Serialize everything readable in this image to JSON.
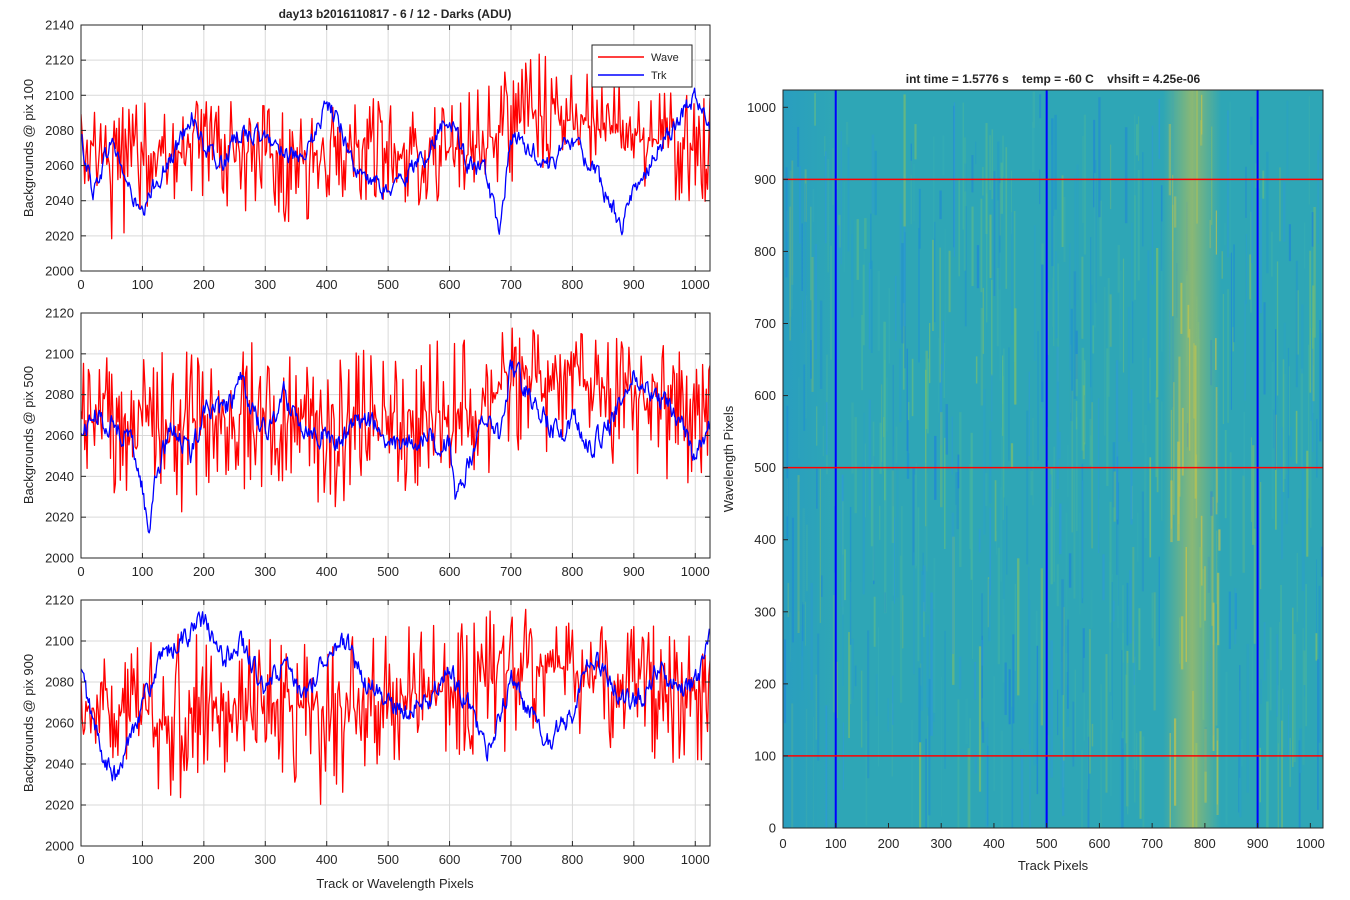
{
  "figure": {
    "title": "day13 b2016110817 - 6 / 12 - Darks (ADU)"
  },
  "chart_data": [
    {
      "type": "line",
      "ylabel": "Backgrounds @ pix 100",
      "xlabel": "",
      "xlim": [
        0,
        1024
      ],
      "ylim": [
        2000,
        2140
      ],
      "xticks": [
        0,
        100,
        200,
        300,
        400,
        500,
        600,
        700,
        800,
        900,
        1000
      ],
      "yticks": [
        2000,
        2020,
        2040,
        2060,
        2080,
        2100,
        2120,
        2140
      ],
      "grid": true,
      "legend": {
        "placement": "top-right",
        "entries": [
          "Wave",
          "Trk"
        ]
      },
      "series": [
        {
          "name": "Wave",
          "color": "#ff0000",
          "x": [
            0,
            50,
            100,
            150,
            200,
            250,
            300,
            350,
            400,
            450,
            500,
            550,
            600,
            650,
            700,
            750,
            800,
            850,
            900,
            950,
            1000,
            1024
          ],
          "y": [
            2065,
            2070,
            2068,
            2066,
            2072,
            2070,
            2068,
            2065,
            2068,
            2070,
            2068,
            2066,
            2070,
            2072,
            2082,
            2088,
            2085,
            2080,
            2076,
            2074,
            2072,
            2074
          ],
          "min": [
            2045,
            2017,
            2016,
            2040,
            2040,
            2030,
            2040,
            2020,
            2040,
            2040,
            2040,
            2030,
            2040,
            2050,
            2050,
            2050,
            2050,
            2050,
            2050,
            2040,
            2038,
            2040
          ],
          "max": [
            2090,
            2095,
            2098,
            2095,
            2100,
            2097,
            2095,
            2100,
            2095,
            2098,
            2100,
            2095,
            2100,
            2105,
            2118,
            2126,
            2118,
            2115,
            2110,
            2108,
            2100,
            2100
          ]
        },
        {
          "name": "Trk",
          "color": "#0000ff",
          "x": [
            0,
            20,
            50,
            80,
            100,
            120,
            150,
            180,
            200,
            230,
            260,
            300,
            330,
            360,
            400,
            420,
            450,
            500,
            530,
            560,
            600,
            630,
            660,
            680,
            700,
            730,
            760,
            800,
            830,
            860,
            880,
            900,
            930,
            960,
            1000,
            1024
          ],
          "y": [
            2075,
            2045,
            2075,
            2045,
            2030,
            2050,
            2065,
            2090,
            2070,
            2060,
            2080,
            2075,
            2070,
            2060,
            2095,
            2085,
            2055,
            2045,
            2055,
            2065,
            2090,
            2060,
            2055,
            2020,
            2075,
            2070,
            2060,
            2075,
            2060,
            2040,
            2025,
            2045,
            2065,
            2080,
            2100,
            2080
          ]
        }
      ]
    },
    {
      "type": "line",
      "ylabel": "Backgrounds @ pix 500",
      "xlabel": "",
      "xlim": [
        0,
        1024
      ],
      "ylim": [
        2000,
        2120
      ],
      "xticks": [
        0,
        100,
        200,
        300,
        400,
        500,
        600,
        700,
        800,
        900,
        1000
      ],
      "yticks": [
        2000,
        2020,
        2040,
        2060,
        2080,
        2100,
        2120
      ],
      "grid": true,
      "series": [
        {
          "name": "Wave",
          "color": "#ff0000",
          "x": [
            0,
            50,
            100,
            150,
            200,
            250,
            300,
            350,
            400,
            450,
            500,
            550,
            600,
            650,
            700,
            750,
            800,
            850,
            900,
            950,
            1000,
            1024
          ],
          "y": [
            2068,
            2070,
            2066,
            2064,
            2070,
            2070,
            2072,
            2068,
            2068,
            2068,
            2070,
            2072,
            2070,
            2072,
            2085,
            2090,
            2088,
            2084,
            2080,
            2076,
            2074,
            2074
          ],
          "min": [
            2040,
            2030,
            2030,
            2007,
            2035,
            2030,
            2035,
            2030,
            2020,
            2030,
            2030,
            2030,
            2035,
            2040,
            2045,
            2050,
            2050,
            2045,
            2040,
            2035,
            2030,
            2040
          ],
          "max": [
            2095,
            2100,
            2098,
            2104,
            2100,
            2102,
            2110,
            2100,
            2098,
            2105,
            2110,
            2108,
            2105,
            2116,
            2115,
            2112,
            2112,
            2110,
            2108,
            2105,
            2100,
            2100
          ]
        },
        {
          "name": "Trk",
          "color": "#0000ff",
          "x": [
            0,
            20,
            50,
            80,
            100,
            110,
            120,
            150,
            180,
            200,
            230,
            260,
            300,
            330,
            360,
            400,
            420,
            450,
            480,
            500,
            530,
            560,
            600,
            610,
            630,
            660,
            680,
            700,
            720,
            750,
            780,
            800,
            830,
            860,
            900,
            950,
            980,
            1000,
            1024
          ],
          "y": [
            2060,
            2070,
            2065,
            2060,
            2035,
            2010,
            2040,
            2065,
            2050,
            2075,
            2070,
            2085,
            2060,
            2080,
            2065,
            2060,
            2055,
            2070,
            2065,
            2055,
            2055,
            2060,
            2055,
            2025,
            2045,
            2070,
            2060,
            2095,
            2085,
            2070,
            2060,
            2070,
            2055,
            2065,
            2090,
            2075,
            2065,
            2050,
            2065
          ]
        }
      ]
    },
    {
      "type": "line",
      "ylabel": "Backgrounds @ pix 900",
      "xlabel": "Track or Wavelength Pixels",
      "xlim": [
        0,
        1024
      ],
      "ylim": [
        2000,
        2120
      ],
      "xticks": [
        0,
        100,
        200,
        300,
        400,
        500,
        600,
        700,
        800,
        900,
        1000
      ],
      "yticks": [
        2000,
        2020,
        2040,
        2060,
        2080,
        2100,
        2120
      ],
      "grid": true,
      "series": [
        {
          "name": "Wave",
          "color": "#ff0000",
          "x": [
            0,
            50,
            100,
            150,
            200,
            250,
            300,
            350,
            400,
            450,
            500,
            550,
            600,
            650,
            700,
            750,
            800,
            850,
            900,
            950,
            1000,
            1024
          ],
          "y": [
            2068,
            2066,
            2064,
            2066,
            2068,
            2066,
            2070,
            2068,
            2066,
            2068,
            2072,
            2074,
            2076,
            2080,
            2086,
            2088,
            2086,
            2082,
            2080,
            2078,
            2076,
            2074
          ],
          "min": [
            2040,
            2040,
            2035,
            2018,
            2040,
            2022,
            2040,
            2030,
            2016,
            2035,
            2040,
            2040,
            2040,
            2045,
            2045,
            2050,
            2050,
            2045,
            2045,
            2040,
            2040,
            2040
          ],
          "max": [
            2095,
            2095,
            2100,
            2105,
            2105,
            2100,
            2105,
            2105,
            2100,
            2105,
            2108,
            2108,
            2110,
            2115,
            2115,
            2116,
            2115,
            2112,
            2110,
            2108,
            2105,
            2100
          ]
        },
        {
          "name": "Trk",
          "color": "#0000ff",
          "x": [
            0,
            20,
            40,
            60,
            80,
            100,
            130,
            160,
            200,
            230,
            260,
            300,
            330,
            360,
            400,
            430,
            460,
            500,
            530,
            560,
            600,
            630,
            660,
            700,
            720,
            760,
            800,
            830,
            860,
            900,
            940,
            980,
            1000,
            1024
          ],
          "y": [
            2085,
            2060,
            2040,
            2032,
            2055,
            2070,
            2090,
            2100,
            2110,
            2090,
            2100,
            2075,
            2090,
            2070,
            2095,
            2100,
            2080,
            2070,
            2065,
            2070,
            2085,
            2070,
            2045,
            2080,
            2070,
            2050,
            2065,
            2095,
            2080,
            2070,
            2085,
            2075,
            2080,
            2100
          ]
        }
      ]
    },
    {
      "type": "heatmap",
      "title": "int time = 1.5776 s    temp = -60 C    vhsift = 4.25e-06",
      "xlabel": "Track Pixels",
      "ylabel": "Wavelength Pixels",
      "xlim": [
        0,
        1024
      ],
      "ylim": [
        0,
        1024
      ],
      "xticks": [
        0,
        100,
        200,
        300,
        400,
        500,
        600,
        700,
        800,
        900,
        1000
      ],
      "yticks": [
        0,
        100,
        200,
        300,
        400,
        500,
        600,
        700,
        800,
        900,
        1000
      ],
      "colormap": "parula",
      "bright_band_x": [
        720,
        830
      ],
      "vertical_markers": {
        "color": "#0000ff",
        "x": [
          100,
          500,
          900
        ]
      },
      "horizontal_markers": {
        "color": "#ff0000",
        "y": [
          100,
          500,
          900
        ]
      }
    }
  ]
}
